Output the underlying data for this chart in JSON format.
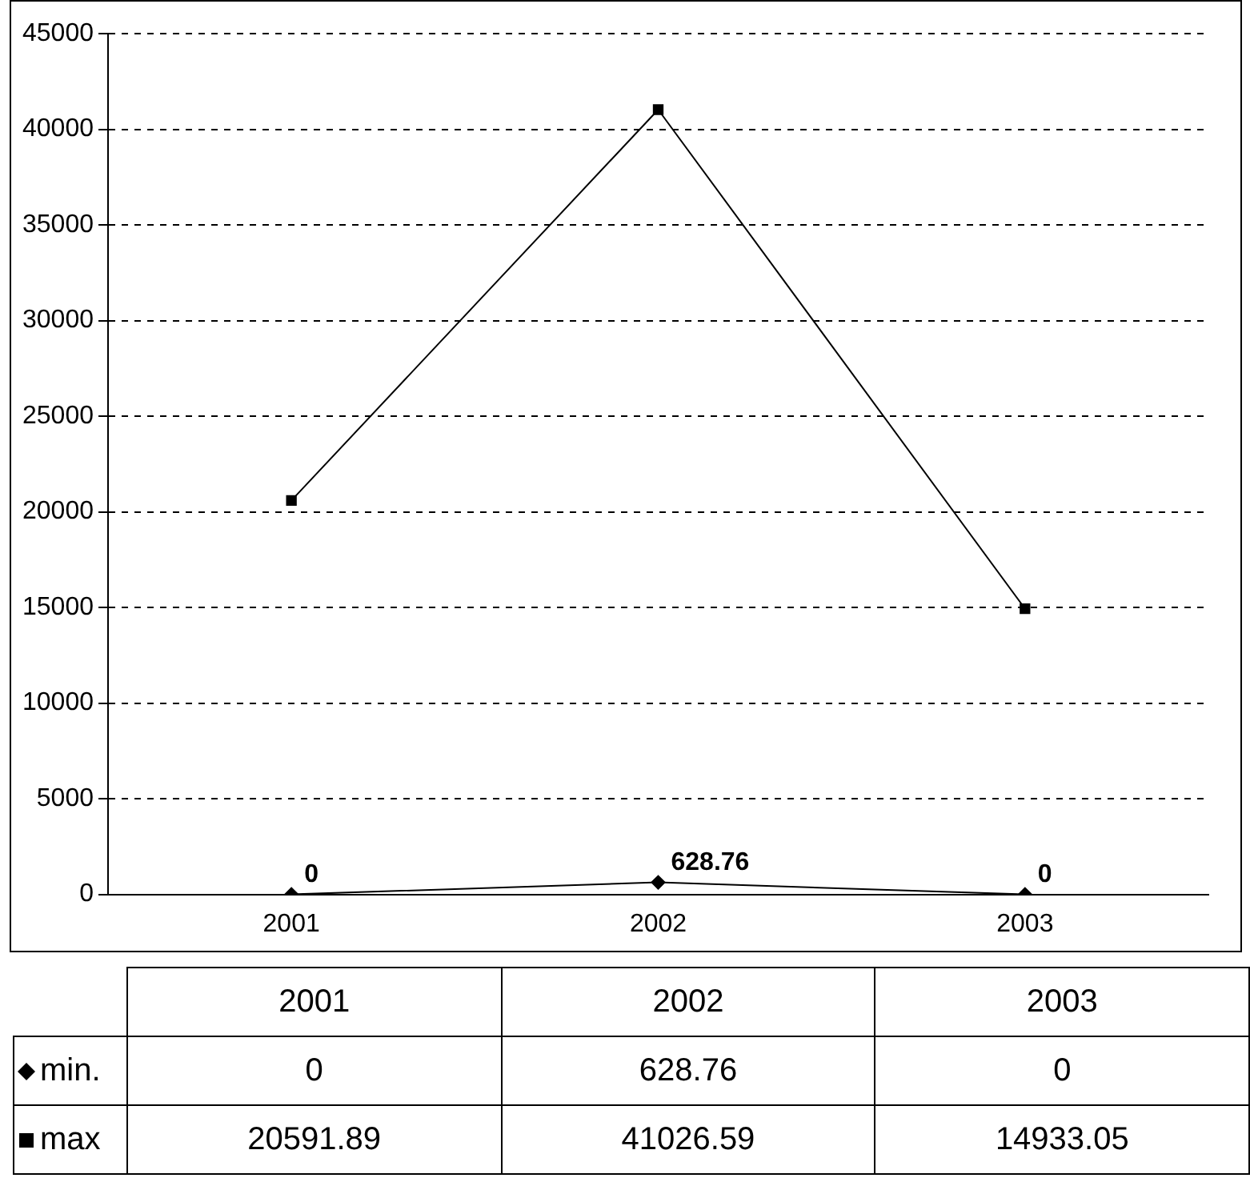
{
  "chart_data": {
    "type": "line",
    "categories": [
      "2001",
      "2002",
      "2003"
    ],
    "series": [
      {
        "name": "min.",
        "color": "#000000",
        "marker": "diamond",
        "values": [
          0,
          628.76,
          0
        ],
        "value_labels": [
          "0",
          "628.76",
          "0"
        ]
      },
      {
        "name": "max",
        "color": "#000000",
        "marker": "square",
        "values": [
          20591.89,
          41026.59,
          14933.05
        ]
      }
    ],
    "ylim": [
      0,
      45000
    ],
    "yticks": [
      0,
      5000,
      10000,
      15000,
      20000,
      25000,
      30000,
      35000,
      40000,
      45000
    ],
    "grid": "y",
    "legend": "bottom",
    "data_labels": true
  }
}
